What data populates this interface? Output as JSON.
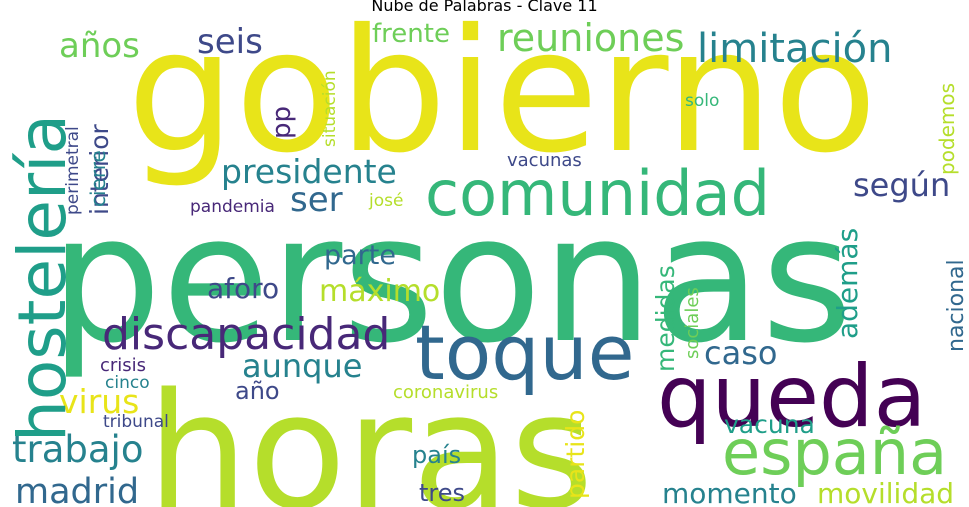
{
  "title": "Nube de Palabras - Clave 11",
  "words": {
    "gobierno": "gobierno",
    "personas": "personas",
    "horas": "horas",
    "comunidad": "comunidad",
    "toque": "toque",
    "queda": "queda",
    "espana": "españa",
    "hosteleria": "hostelería",
    "discapacidad": "discapacidad",
    "anos": "años",
    "seis": "seis",
    "reuniones": "reuniones",
    "frente": "frente",
    "limitacion": "limitación",
    "situacion": "situación",
    "podemos": "podemos",
    "solo": "solo",
    "pp": "pp",
    "presidente": "presidente",
    "segun": "según",
    "ser": "ser",
    "vacunas": "vacunas",
    "pandemia": "pandemia",
    "jose": "josé",
    "interior": "interior",
    "cierre": "cierre",
    "perimetral": "perimetral",
    "parte": "parte",
    "maximo": "máximo",
    "aforo": "aforo",
    "ademas": "además",
    "medidas": "medidas",
    "sociales": "sociales",
    "nacional": "nacional",
    "caso": "caso",
    "aunque": "aunque",
    "crisis": "crisis",
    "cinco": "cinco",
    "virus": "virus",
    "ano": "año",
    "coronavirus": "coronavirus",
    "tribunal": "tribunal",
    "trabajo": "trabajo",
    "vacuna": "vacuna",
    "pais": "país",
    "partido": "partido",
    "madrid": "madrid",
    "tres": "tres",
    "momento": "momento",
    "movilidad": "movilidad"
  },
  "colors": {
    "yellow": "#e8e419",
    "yellow_green": "#b5de2b",
    "light_green": "#6ece58",
    "green": "#35b779",
    "teal": "#1f9e89",
    "teal_blue": "#26828e",
    "blue": "#31688e",
    "indigo": "#3e4989",
    "purple": "#482878",
    "dark_purple": "#440154"
  }
}
